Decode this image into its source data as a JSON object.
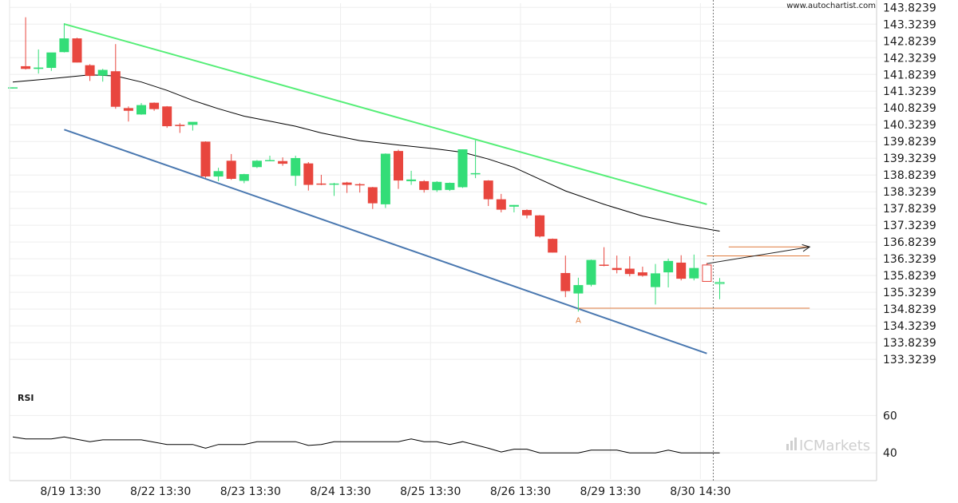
{
  "watermark": "www.autochartist.com",
  "brand": {
    "text": "ICMarkets"
  },
  "colors": {
    "bull": "#33dd77",
    "bear": "#e8463e",
    "upper_channel": "#55ee77",
    "lower_channel": "#4a78b0",
    "ma": "#000000",
    "level": "#e07a3c",
    "grid": "#eeeeee",
    "rsi": "#000000",
    "vline": "#777777"
  },
  "chart_data": [
    {
      "type": "candlestick",
      "title": "",
      "y_axis_side": "right",
      "ylim": [
        132.85,
        143.95
      ],
      "y_ticks": [
        "143.8239",
        "143.3239",
        "142.8239",
        "142.3239",
        "141.8239",
        "141.3239",
        "140.8239",
        "140.3239",
        "139.8239",
        "139.3239",
        "138.8239",
        "138.3239",
        "137.8239",
        "137.3239",
        "136.8239",
        "136.3239",
        "135.8239",
        "135.3239",
        "134.8239",
        "134.3239",
        "133.8239",
        "133.3239"
      ],
      "x_ticks": [
        {
          "label": "8/19 13:30",
          "index": 4.5
        },
        {
          "label": "8/22 13:30",
          "index": 11.5
        },
        {
          "label": "8/23 13:30",
          "index": 18.5
        },
        {
          "label": "8/24 13:30",
          "index": 25.5
        },
        {
          "label": "8/25 13:30",
          "index": 32.5
        },
        {
          "label": "8/26 13:30",
          "index": 39.5
        },
        {
          "label": "8/29 13:30",
          "index": 46.5
        },
        {
          "label": "8/30 14:30",
          "index": 53.5
        }
      ],
      "current_index": 54.5,
      "candles": [
        {
          "o": 141.42,
          "h": 141.44,
          "l": 141.4,
          "c": 141.44
        },
        {
          "o": 142.07,
          "h": 143.53,
          "l": 141.97,
          "c": 141.99
        },
        {
          "o": 141.99,
          "h": 142.57,
          "l": 141.85,
          "c": 142.03
        },
        {
          "o": 142.02,
          "h": 142.47,
          "l": 141.93,
          "c": 142.48
        },
        {
          "o": 142.49,
          "h": 143.35,
          "l": 142.48,
          "c": 142.9
        },
        {
          "o": 142.9,
          "h": 142.92,
          "l": 142.18,
          "c": 142.18
        },
        {
          "o": 142.1,
          "h": 142.13,
          "l": 141.63,
          "c": 141.78
        },
        {
          "o": 141.79,
          "h": 141.99,
          "l": 141.61,
          "c": 141.96
        },
        {
          "o": 141.92,
          "h": 142.73,
          "l": 140.8,
          "c": 140.86
        },
        {
          "o": 140.82,
          "h": 140.87,
          "l": 140.42,
          "c": 140.74
        },
        {
          "o": 140.63,
          "h": 140.97,
          "l": 140.62,
          "c": 140.91
        },
        {
          "o": 140.98,
          "h": 140.99,
          "l": 140.74,
          "c": 140.79
        },
        {
          "o": 140.87,
          "h": 140.88,
          "l": 140.23,
          "c": 140.28
        },
        {
          "o": 140.32,
          "h": 140.37,
          "l": 140.08,
          "c": 140.3
        },
        {
          "o": 140.32,
          "h": 140.4,
          "l": 140.15,
          "c": 140.41
        },
        {
          "o": 139.82,
          "h": 139.83,
          "l": 138.74,
          "c": 138.78
        },
        {
          "o": 138.78,
          "h": 139.04,
          "l": 138.64,
          "c": 138.94
        },
        {
          "o": 139.25,
          "h": 139.45,
          "l": 138.68,
          "c": 138.71
        },
        {
          "o": 138.65,
          "h": 138.86,
          "l": 138.58,
          "c": 138.85
        },
        {
          "o": 139.06,
          "h": 139.27,
          "l": 139.03,
          "c": 139.25
        },
        {
          "o": 139.27,
          "h": 139.4,
          "l": 139.25,
          "c": 139.27
        },
        {
          "o": 139.24,
          "h": 139.35,
          "l": 139.1,
          "c": 139.16
        },
        {
          "o": 138.8,
          "h": 139.4,
          "l": 138.5,
          "c": 139.33
        },
        {
          "o": 139.17,
          "h": 139.21,
          "l": 138.36,
          "c": 138.53
        },
        {
          "o": 138.57,
          "h": 138.83,
          "l": 138.52,
          "c": 138.56
        },
        {
          "o": 138.56,
          "h": 138.59,
          "l": 138.2,
          "c": 138.57
        },
        {
          "o": 138.6,
          "h": 138.62,
          "l": 138.29,
          "c": 138.53
        },
        {
          "o": 138.55,
          "h": 138.58,
          "l": 138.3,
          "c": 138.54
        },
        {
          "o": 138.46,
          "h": 138.47,
          "l": 137.81,
          "c": 137.98
        },
        {
          "o": 137.95,
          "h": 139.47,
          "l": 137.84,
          "c": 139.46
        },
        {
          "o": 139.54,
          "h": 139.58,
          "l": 138.41,
          "c": 138.66
        },
        {
          "o": 138.64,
          "h": 138.95,
          "l": 138.53,
          "c": 138.69
        },
        {
          "o": 138.64,
          "h": 138.67,
          "l": 138.3,
          "c": 138.38
        },
        {
          "o": 138.37,
          "h": 138.64,
          "l": 138.32,
          "c": 138.62
        },
        {
          "o": 138.38,
          "h": 138.6,
          "l": 138.35,
          "c": 138.59
        },
        {
          "o": 138.46,
          "h": 139.59,
          "l": 138.44,
          "c": 139.59
        },
        {
          "o": 138.87,
          "h": 139.86,
          "l": 138.73,
          "c": 138.88
        },
        {
          "o": 138.66,
          "h": 138.67,
          "l": 137.9,
          "c": 138.1
        },
        {
          "o": 138.1,
          "h": 138.26,
          "l": 137.71,
          "c": 137.79
        },
        {
          "o": 137.88,
          "h": 137.93,
          "l": 137.71,
          "c": 137.93
        },
        {
          "o": 137.78,
          "h": 137.8,
          "l": 137.53,
          "c": 137.62
        },
        {
          "o": 137.62,
          "h": 137.63,
          "l": 136.96,
          "c": 136.99
        },
        {
          "o": 136.92,
          "h": 136.93,
          "l": 136.51,
          "c": 136.51
        },
        {
          "o": 135.9,
          "h": 136.42,
          "l": 135.18,
          "c": 135.36
        },
        {
          "o": 135.29,
          "h": 135.76,
          "l": 134.75,
          "c": 135.54
        },
        {
          "o": 135.55,
          "h": 136.3,
          "l": 135.5,
          "c": 136.29
        },
        {
          "o": 136.15,
          "h": 136.67,
          "l": 136.1,
          "c": 136.14
        },
        {
          "o": 136.05,
          "h": 136.42,
          "l": 135.89,
          "c": 135.99
        },
        {
          "o": 136.03,
          "h": 136.4,
          "l": 135.8,
          "c": 135.87
        },
        {
          "o": 135.92,
          "h": 136.09,
          "l": 135.79,
          "c": 135.82
        },
        {
          "o": 135.48,
          "h": 136.17,
          "l": 134.96,
          "c": 135.89
        },
        {
          "o": 135.92,
          "h": 136.33,
          "l": 135.47,
          "c": 136.26
        },
        {
          "o": 136.21,
          "h": 136.43,
          "l": 135.68,
          "c": 135.73
        },
        {
          "o": 135.74,
          "h": 136.45,
          "l": 135.68,
          "c": 136.05
        },
        {
          "o": 136.14,
          "h": 136.2,
          "l": 135.64,
          "c": 135.65,
          "hollow": true
        },
        {
          "o": 135.6,
          "h": 135.75,
          "l": 135.12,
          "c": 135.62,
          "hollow": true
        }
      ],
      "moving_average": [
        {
          "i": 0,
          "v": 141.6
        },
        {
          "i": 3,
          "v": 141.7
        },
        {
          "i": 6,
          "v": 141.81
        },
        {
          "i": 8,
          "v": 141.78
        },
        {
          "i": 10,
          "v": 141.6
        },
        {
          "i": 12,
          "v": 141.35
        },
        {
          "i": 14,
          "v": 141.05
        },
        {
          "i": 16,
          "v": 140.8
        },
        {
          "i": 18,
          "v": 140.58
        },
        {
          "i": 20,
          "v": 140.43
        },
        {
          "i": 22,
          "v": 140.28
        },
        {
          "i": 24,
          "v": 140.08
        },
        {
          "i": 27,
          "v": 139.85
        },
        {
          "i": 30,
          "v": 139.72
        },
        {
          "i": 33,
          "v": 139.6
        },
        {
          "i": 35,
          "v": 139.5
        },
        {
          "i": 37,
          "v": 139.3
        },
        {
          "i": 39,
          "v": 139.05
        },
        {
          "i": 41,
          "v": 138.7
        },
        {
          "i": 43,
          "v": 138.35
        },
        {
          "i": 46,
          "v": 137.95
        },
        {
          "i": 49,
          "v": 137.6
        },
        {
          "i": 52,
          "v": 137.35
        },
        {
          "i": 55,
          "v": 137.15
        }
      ],
      "upper_channel": [
        {
          "i": 4,
          "v": 143.33
        },
        {
          "i": 54,
          "v": 137.95
        }
      ],
      "lower_channel": [
        {
          "i": 4,
          "v": 140.18
        },
        {
          "i": 54,
          "v": 133.5
        }
      ],
      "levels": [
        {
          "value": 136.68,
          "from": 55.7,
          "to": 62.0
        },
        {
          "value": 136.41,
          "from": 54.0,
          "to": 62.0
        },
        {
          "value": 134.85,
          "from": 44.0,
          "to": 62.0
        }
      ],
      "projection": {
        "from": {
          "i": 54,
          "v": 136.18
        },
        "to": {
          "i": 62,
          "v": 136.68
        }
      },
      "point_label": {
        "text": "A",
        "i": 44,
        "v": 134.7
      }
    },
    {
      "type": "line",
      "title": "RSI",
      "y_ticks": [
        "60",
        "40"
      ],
      "ylim": [
        26,
        73
      ],
      "values": [
        {
          "i": 0,
          "v": 48.5
        },
        {
          "i": 1,
          "v": 47.5
        },
        {
          "i": 3,
          "v": 47.5
        },
        {
          "i": 4,
          "v": 48.5
        },
        {
          "i": 6,
          "v": 46.0
        },
        {
          "i": 7,
          "v": 47.0
        },
        {
          "i": 10,
          "v": 47.0
        },
        {
          "i": 12,
          "v": 44.5
        },
        {
          "i": 14,
          "v": 44.5
        },
        {
          "i": 15,
          "v": 42.5
        },
        {
          "i": 16,
          "v": 44.5
        },
        {
          "i": 18,
          "v": 44.5
        },
        {
          "i": 19,
          "v": 46.0
        },
        {
          "i": 22,
          "v": 46.0
        },
        {
          "i": 23,
          "v": 44.0
        },
        {
          "i": 24,
          "v": 44.5
        },
        {
          "i": 25,
          "v": 46.0
        },
        {
          "i": 30,
          "v": 46.0
        },
        {
          "i": 31,
          "v": 47.5
        },
        {
          "i": 32,
          "v": 46.0
        },
        {
          "i": 33,
          "v": 46.0
        },
        {
          "i": 34,
          "v": 44.5
        },
        {
          "i": 35,
          "v": 46.0
        },
        {
          "i": 37,
          "v": 42.5
        },
        {
          "i": 38,
          "v": 40.5
        },
        {
          "i": 39,
          "v": 42.0
        },
        {
          "i": 40,
          "v": 42.0
        },
        {
          "i": 41,
          "v": 40.0
        },
        {
          "i": 44,
          "v": 40.0
        },
        {
          "i": 45,
          "v": 41.5
        },
        {
          "i": 47,
          "v": 41.5
        },
        {
          "i": 48,
          "v": 40.0
        },
        {
          "i": 50,
          "v": 40.0
        },
        {
          "i": 51,
          "v": 41.5
        },
        {
          "i": 52,
          "v": 40.0
        },
        {
          "i": 55,
          "v": 40.0
        }
      ]
    }
  ]
}
